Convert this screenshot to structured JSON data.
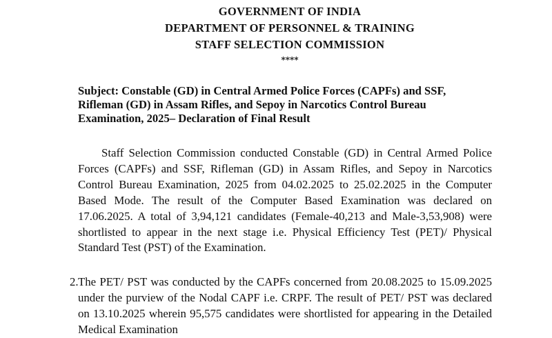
{
  "header": {
    "line1": "GOVERNMENT OF INDIA",
    "line2": "DEPARTMENT OF PERSONNEL & TRAINING",
    "line3": "STAFF SELECTION COMMISSION",
    "separator": "****"
  },
  "subject": "Subject: Constable (GD) in Central Armed Police Forces (CAPFs) and SSF, Rifleman (GD) in Assam Rifles, and Sepoy in Narcotics Control Bureau Examination, 2025– Declaration of Final Result",
  "paragraphs": [
    {
      "number": "",
      "text": "Staff Selection Commission conducted Constable (GD) in Central Armed Police Forces (CAPFs) and SSF, Rifleman (GD) in Assam Rifles, and Sepoy in Narcotics Control Bureau Examination, 2025 from 04.02.2025 to 25.02.2025 in the Computer Based Mode. The result of the Computer Based Examination was declared on 17.06.2025. A total of 3,94,121 candidates (Female-40,213 and Male-3,53,908) were shortlisted to appear in the next stage i.e.  Physical Efficiency Test (PET)/ Physical Standard Test (PST) of the Examination."
    },
    {
      "number": "2.",
      "text": "The PET/ PST was conducted by the CAPFs concerned from 20.08.2025 to 15.09.2025 under the purview of the Nodal CAPF i.e. CRPF. The result of PET/ PST was declared on 13.10.2025 wherein 95,575 candidates were shortlisted for appearing in the Detailed Medical Examination"
    }
  ]
}
